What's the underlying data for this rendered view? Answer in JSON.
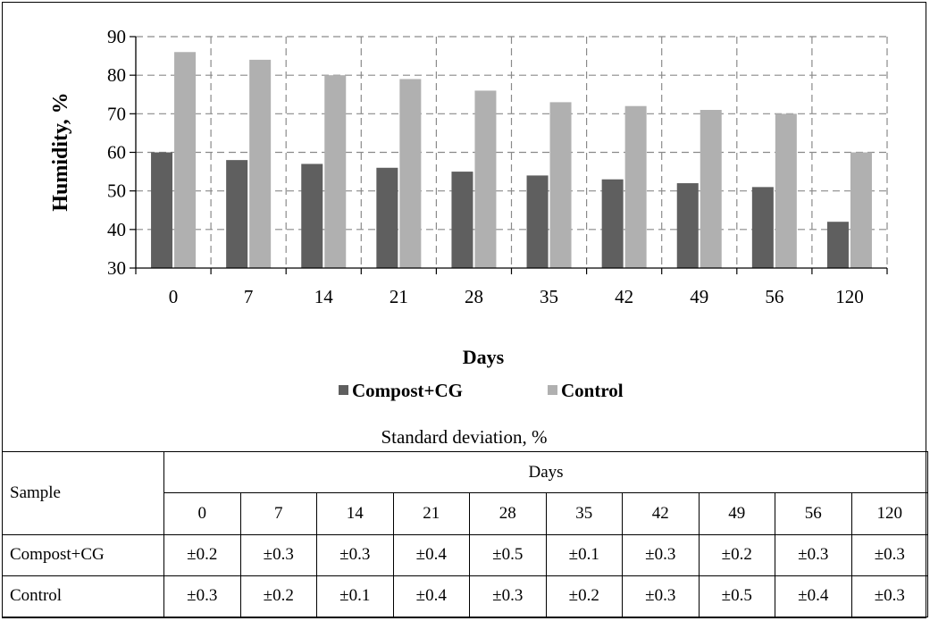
{
  "chart_data": {
    "type": "bar",
    "categories": [
      "0",
      "7",
      "14",
      "21",
      "28",
      "35",
      "42",
      "49",
      "56",
      "120"
    ],
    "series": [
      {
        "name": "Compost+CG",
        "values": [
          60,
          58,
          57,
          56,
          55,
          54,
          53,
          52,
          51,
          42
        ]
      },
      {
        "name": "Control",
        "values": [
          86,
          84,
          80,
          79,
          76,
          73,
          72,
          71,
          70,
          60
        ]
      }
    ],
    "colors": {
      "Compost+CG": "#5f5f5f",
      "Control": "#b0b0b0"
    },
    "xlabel": "Days",
    "ylabel": "Humidity, %",
    "ylim": [
      30,
      90
    ],
    "yticks": [
      "30",
      "40",
      "50",
      "60",
      "70",
      "80",
      "90"
    ],
    "grid": true,
    "legend_position": "bottom"
  },
  "std_table": {
    "caption": "Standard deviation, %",
    "sample_header": "Sample",
    "days_header": "Days",
    "days": [
      "0",
      "7",
      "14",
      "21",
      "28",
      "35",
      "42",
      "49",
      "56",
      "120"
    ],
    "rows": [
      {
        "sample": "Compost+CG",
        "values": [
          "±0.2",
          "±0.3",
          "±0.3",
          "±0.4",
          "±0.5",
          "±0.1",
          "±0.3",
          "±0.2",
          "±0.3",
          "±0.3"
        ]
      },
      {
        "sample": "Control",
        "values": [
          "±0.3",
          "±0.2",
          "±0.1",
          "±0.4",
          "±0.3",
          "±0.2",
          "±0.3",
          "±0.5",
          "±0.4",
          "±0.3"
        ]
      }
    ]
  }
}
